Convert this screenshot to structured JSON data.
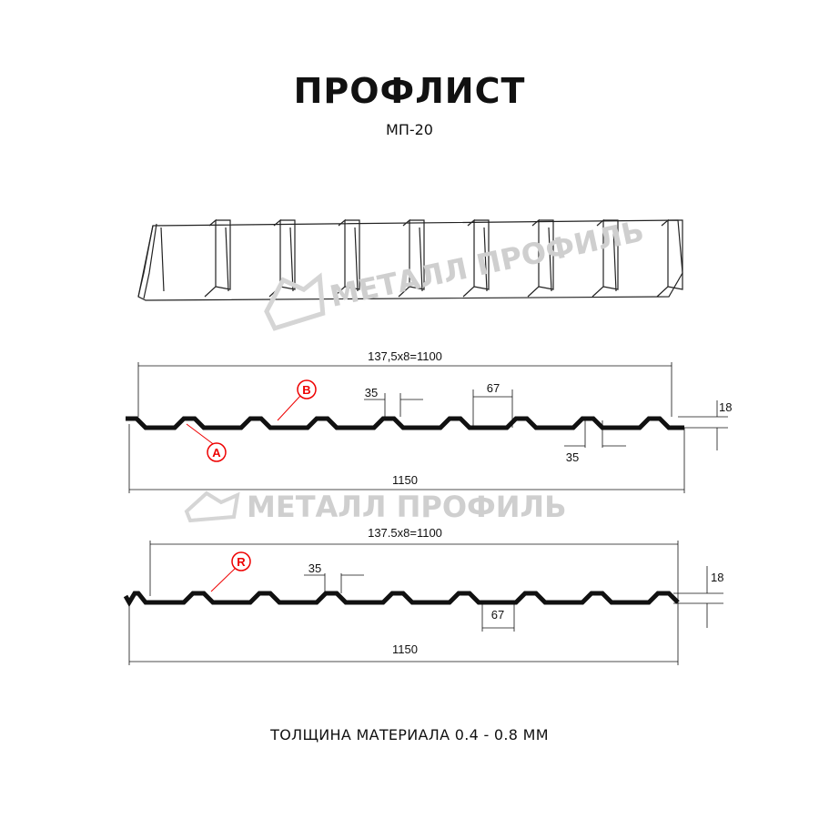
{
  "header": {
    "title": "ПРОФЛИСТ",
    "subtitle": "МП-20"
  },
  "watermark": {
    "text": "МЕТАЛЛ ПРОФИЛЬ"
  },
  "profile_a": {
    "pitch_label": "137,5x8=1100",
    "width_label": "1150",
    "top_flange": "35",
    "bottom_flange_label": "35",
    "valley": "67",
    "height": "18",
    "marker_a": "A",
    "marker_b": "B"
  },
  "profile_b": {
    "pitch_label": "137.5x8=1100",
    "width_label": "1150",
    "top_flange": "35",
    "valley": "67",
    "height": "18",
    "marker_r": "R"
  },
  "footer": {
    "text": "ТОЛЩИНА МАТЕРИАЛА 0.4 - 0.8 ММ"
  },
  "colors": {
    "profile": "#111111",
    "marker": "#e00000",
    "watermark": "#cfcfcf"
  }
}
